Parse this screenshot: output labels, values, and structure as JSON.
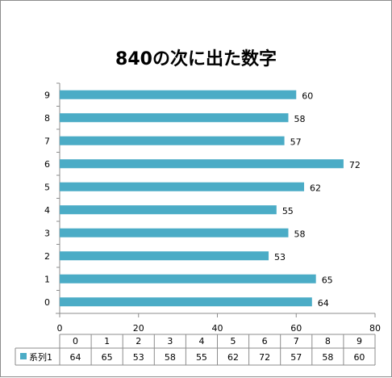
{
  "chart_data": {
    "type": "bar",
    "orientation": "horizontal",
    "title": "840の次に出た数字",
    "categories": [
      "0",
      "1",
      "2",
      "3",
      "4",
      "5",
      "6",
      "7",
      "8",
      "9"
    ],
    "series": [
      {
        "name": "系列1",
        "values": [
          64,
          65,
          53,
          58,
          55,
          62,
          72,
          57,
          58,
          60
        ],
        "color": "#4bacc6"
      }
    ],
    "xlim": [
      0,
      80
    ],
    "xticks": [
      0,
      20,
      40,
      60,
      80
    ],
    "grid": false,
    "data_table": true,
    "legend_placement": "in-data-table"
  }
}
